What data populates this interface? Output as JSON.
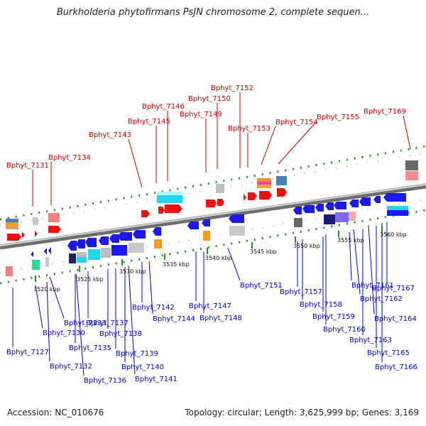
{
  "title": "Burkholderia phytofirmans PsJN chromosome 2, complete sequen...",
  "footer": {
    "accession": "Accession: NC_010676",
    "topology": "Topology: circular; Length: 3,625,999 bp; Genes: 3,169"
  },
  "scale_ticks": [
    "3520 kbp",
    "3525 kbp",
    "3530 kbp",
    "3535 kbp",
    "3540 kbp",
    "3545 kbp",
    "3550 kbp",
    "3555 kbp",
    "3560 kbp"
  ],
  "colors": {
    "forward_label": "#cc0000",
    "reverse_label": "#0000cc",
    "forward_gene": "#ee1111",
    "reverse_gene": "#1a1aee",
    "backbone": "#8a8a8a",
    "track_dots": "#2e8b2e"
  },
  "forward_labels": [
    "Bphyt_7131",
    "Bphyt_7134",
    "Bphyt_7143",
    "Bphyt_7145",
    "Bphyt_7146",
    "Bphyt_7149",
    "Bphyt_7150",
    "Bphyt_7152",
    "Bphyt_7153",
    "Bphyt_7154",
    "Bphyt_7155",
    "Bphyt_7169"
  ],
  "reverse_labels": [
    "Bphyt_7127",
    "Bphyt_7130",
    "Bphyt_7132",
    "Bphyt_7133",
    "Bphyt_7135",
    "Bphyt_7136",
    "Bphyt_7137",
    "Bphyt_7138",
    "Bphyt_7139",
    "Bphyt_7140",
    "Bphyt_7141",
    "Bphyt_7142",
    "Bphyt_7144",
    "Bphyt_7147",
    "Bphyt_7148",
    "Bphyt_7151",
    "Bphyt_7157",
    "Bphyt_7158",
    "Bphyt_7159",
    "Bphyt_7160",
    "Bphyt_7161",
    "Bphyt_7162",
    "Bphyt_7163",
    "Bphyt_7164",
    "Bphyt_7165",
    "Bphyt_7166",
    "Bphyt_7167"
  ]
}
